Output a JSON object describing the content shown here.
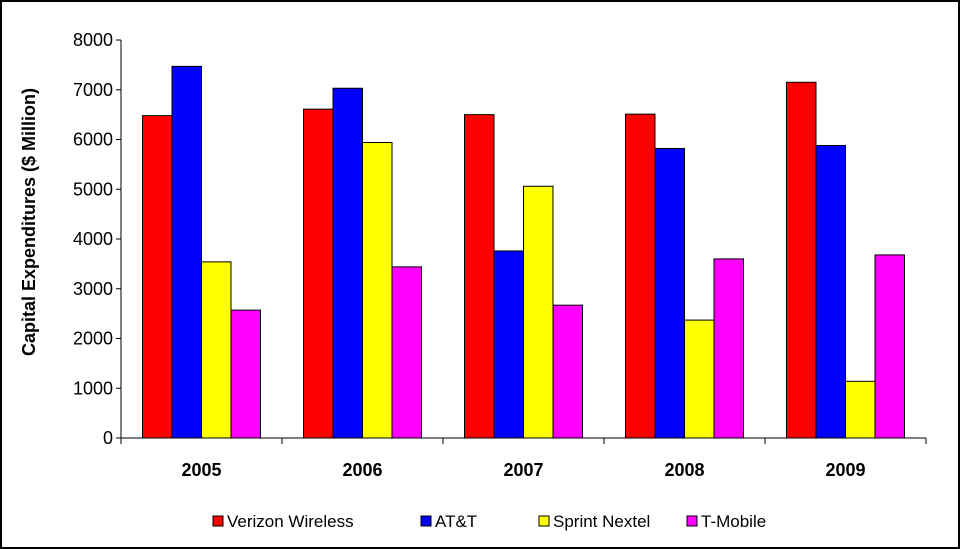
{
  "chart_data": {
    "type": "bar",
    "title": "",
    "xlabel": "",
    "ylabel": "Capital Expenditures ($ Million)",
    "ylim": [
      0,
      8000
    ],
    "yticks": [
      0,
      1000,
      2000,
      3000,
      4000,
      5000,
      6000,
      7000,
      8000
    ],
    "grid": false,
    "legend_position": "bottom",
    "categories": [
      "2005",
      "2006",
      "2007",
      "2008",
      "2009"
    ],
    "series": [
      {
        "name": "Verizon Wireless",
        "color": "#ff0000",
        "values": [
          6480,
          6610,
          6500,
          6510,
          7150
        ]
      },
      {
        "name": "AT&T",
        "color": "#0000ff",
        "values": [
          7470,
          7030,
          3760,
          5820,
          5880
        ]
      },
      {
        "name": "Sprint Nextel",
        "color": "#ffff00",
        "values": [
          3540,
          5940,
          5060,
          2370,
          1140
        ]
      },
      {
        "name": "T-Mobile",
        "color": "#ff00ff",
        "values": [
          2570,
          3440,
          2670,
          3600,
          3680
        ]
      }
    ]
  }
}
